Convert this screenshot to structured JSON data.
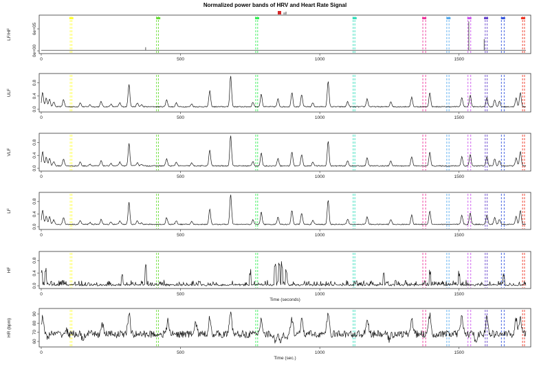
{
  "chart_data": {
    "type": "line",
    "title": "Normalized power bands of HRV and Heart Rate Signal",
    "legend": {
      "placement": "top-center",
      "items": [
        {
          "label": "all",
          "color": "#d62728"
        }
      ]
    },
    "episode_colors": [
      "#ffff33",
      "#66dd33",
      "#33ee55",
      "#33ddbb",
      "#ee3399",
      "#55aaee",
      "#cc55ee",
      "#6644cc",
      "#3355dd",
      "#ee3322"
    ],
    "episode_marker_x": [
      108,
      420,
      775,
      1125,
      1375,
      1462,
      1537,
      1597,
      1658,
      1730
    ],
    "episode_lines_x": [
      [
        104,
        110
      ],
      [
        414,
        421
      ],
      [
        770,
        777
      ],
      [
        1120,
        1126
      ],
      [
        1370,
        1380
      ],
      [
        1456,
        1464
      ],
      [
        1532,
        1542
      ],
      [
        1594,
        1601
      ],
      [
        1652,
        1662
      ],
      [
        1728,
        1735
      ]
    ],
    "xlim": [
      0,
      1750
    ],
    "xticks": [
      0,
      500,
      1000,
      1500
    ],
    "panels": [
      {
        "ylabel": "LF/HF",
        "yticks": [
          "0e+00",
          "6e+05"
        ],
        "ylim": [
          0,
          900000
        ],
        "kind": "spikes",
        "baseline": 15000,
        "spikes": [
          [
            375,
            100000
          ],
          [
            600,
            15000
          ],
          [
            1535,
            800000
          ],
          [
            1590,
            320000
          ]
        ],
        "xlabel": ""
      },
      {
        "ylabel": "ULF",
        "yticks": [
          "0.0",
          "0.4",
          "0.8"
        ],
        "ylim": [
          0,
          1
        ],
        "kind": "peaks",
        "base": 0.06,
        "noise": 0.03,
        "peaks": [
          [
            5,
            0.5
          ],
          [
            18,
            0.32
          ],
          [
            30,
            0.3
          ],
          [
            45,
            0.2
          ],
          [
            80,
            0.28
          ],
          [
            140,
            0.18
          ],
          [
            175,
            0.12
          ],
          [
            215,
            0.22
          ],
          [
            250,
            0.14
          ],
          [
            282,
            0.18
          ],
          [
            315,
            0.75
          ],
          [
            345,
            0.17
          ],
          [
            360,
            0.12
          ],
          [
            450,
            0.28
          ],
          [
            485,
            0.18
          ],
          [
            540,
            0.15
          ],
          [
            605,
            0.55
          ],
          [
            680,
            1.0
          ],
          [
            760,
            0.2
          ],
          [
            790,
            0.45
          ],
          [
            850,
            0.3
          ],
          [
            900,
            0.5
          ],
          [
            935,
            0.42
          ],
          [
            975,
            0.18
          ],
          [
            1030,
            0.82
          ],
          [
            1100,
            0.22
          ],
          [
            1170,
            0.3
          ],
          [
            1255,
            0.22
          ],
          [
            1330,
            0.35
          ],
          [
            1395,
            0.48
          ],
          [
            1510,
            0.35
          ],
          [
            1540,
            0.42
          ],
          [
            1600,
            0.35
          ],
          [
            1628,
            0.28
          ],
          [
            1645,
            0.22
          ],
          [
            1705,
            0.32
          ],
          [
            1720,
            0.5
          ]
        ],
        "xlabel": ""
      },
      {
        "ylabel": "VLF",
        "yticks": [
          "0.0",
          "0.4",
          "0.8"
        ],
        "ylim": [
          0,
          1
        ],
        "kind": "peaks",
        "base": 0.06,
        "noise": 0.03,
        "peaks": [
          [
            5,
            0.5
          ],
          [
            18,
            0.32
          ],
          [
            30,
            0.3
          ],
          [
            45,
            0.2
          ],
          [
            80,
            0.28
          ],
          [
            140,
            0.18
          ],
          [
            175,
            0.12
          ],
          [
            215,
            0.22
          ],
          [
            250,
            0.14
          ],
          [
            282,
            0.18
          ],
          [
            315,
            0.75
          ],
          [
            345,
            0.17
          ],
          [
            360,
            0.12
          ],
          [
            450,
            0.28
          ],
          [
            485,
            0.18
          ],
          [
            540,
            0.15
          ],
          [
            605,
            0.55
          ],
          [
            680,
            1.0
          ],
          [
            760,
            0.2
          ],
          [
            790,
            0.45
          ],
          [
            850,
            0.3
          ],
          [
            900,
            0.5
          ],
          [
            935,
            0.42
          ],
          [
            975,
            0.18
          ],
          [
            1030,
            0.82
          ],
          [
            1100,
            0.22
          ],
          [
            1170,
            0.3
          ],
          [
            1255,
            0.22
          ],
          [
            1330,
            0.35
          ],
          [
            1395,
            0.48
          ],
          [
            1510,
            0.35
          ],
          [
            1540,
            0.42
          ],
          [
            1600,
            0.35
          ],
          [
            1628,
            0.28
          ],
          [
            1645,
            0.22
          ],
          [
            1705,
            0.32
          ],
          [
            1720,
            0.5
          ]
        ],
        "xlabel": ""
      },
      {
        "ylabel": "LF",
        "yticks": [
          "0.0",
          "0.4",
          "0.8"
        ],
        "ylim": [
          0,
          1
        ],
        "kind": "peaks",
        "base": 0.06,
        "noise": 0.03,
        "peaks": [
          [
            5,
            0.5
          ],
          [
            18,
            0.32
          ],
          [
            30,
            0.3
          ],
          [
            45,
            0.2
          ],
          [
            80,
            0.28
          ],
          [
            140,
            0.18
          ],
          [
            175,
            0.12
          ],
          [
            215,
            0.22
          ],
          [
            250,
            0.14
          ],
          [
            282,
            0.18
          ],
          [
            315,
            0.75
          ],
          [
            345,
            0.17
          ],
          [
            360,
            0.12
          ],
          [
            450,
            0.28
          ],
          [
            485,
            0.18
          ],
          [
            540,
            0.15
          ],
          [
            605,
            0.55
          ],
          [
            680,
            1.0
          ],
          [
            760,
            0.2
          ],
          [
            790,
            0.45
          ],
          [
            850,
            0.3
          ],
          [
            900,
            0.5
          ],
          [
            935,
            0.42
          ],
          [
            975,
            0.18
          ],
          [
            1030,
            0.82
          ],
          [
            1100,
            0.22
          ],
          [
            1170,
            0.3
          ],
          [
            1255,
            0.22
          ],
          [
            1330,
            0.35
          ],
          [
            1395,
            0.48
          ],
          [
            1510,
            0.35
          ],
          [
            1540,
            0.42
          ],
          [
            1600,
            0.35
          ],
          [
            1628,
            0.28
          ],
          [
            1645,
            0.22
          ],
          [
            1705,
            0.32
          ],
          [
            1720,
            0.5
          ]
        ],
        "xlabel": ""
      },
      {
        "ylabel": "HF",
        "yticks": [
          "0.0",
          "0.4",
          "0.8"
        ],
        "ylim": [
          0,
          1
        ],
        "kind": "noise",
        "base": 0.05,
        "noise": 0.14,
        "bursts": [
          [
            2,
            0.6
          ],
          [
            15,
            0.58
          ],
          [
            290,
            0.42
          ],
          [
            375,
            0.88
          ],
          [
            750,
            0.55
          ],
          [
            840,
            0.7
          ],
          [
            855,
            0.95
          ],
          [
            865,
            0.8
          ],
          [
            880,
            0.6
          ],
          [
            1230,
            0.45
          ],
          [
            1395,
            0.52
          ],
          [
            1500,
            0.48
          ],
          [
            1660,
            0.45
          ]
        ],
        "xlabel": "Time (seconds)"
      },
      {
        "ylabel": "HR (bpm)",
        "yticks": [
          "60",
          "70",
          "80",
          "90"
        ],
        "ylim": [
          57,
          93
        ],
        "kind": "hr",
        "base": 68,
        "noise": 4,
        "peaks": [
          [
            5,
            88
          ],
          [
            90,
            72
          ],
          [
            220,
            78
          ],
          [
            315,
            90
          ],
          [
            455,
            82
          ],
          [
            555,
            80
          ],
          [
            605,
            86
          ],
          [
            680,
            91
          ],
          [
            790,
            85
          ],
          [
            900,
            84
          ],
          [
            935,
            82
          ],
          [
            1030,
            90
          ],
          [
            1170,
            86
          ],
          [
            1330,
            84
          ],
          [
            1395,
            88
          ],
          [
            1510,
            87
          ],
          [
            1600,
            85
          ],
          [
            1705,
            84
          ],
          [
            1720,
            87
          ]
        ],
        "dips": [
          [
            20,
            64
          ],
          [
            150,
            62
          ],
          [
            840,
            60
          ],
          [
            860,
            58
          ],
          [
            880,
            61
          ],
          [
            1250,
            62
          ],
          [
            1560,
            62
          ]
        ],
        "xlabel": "Time (sec.)"
      }
    ]
  }
}
